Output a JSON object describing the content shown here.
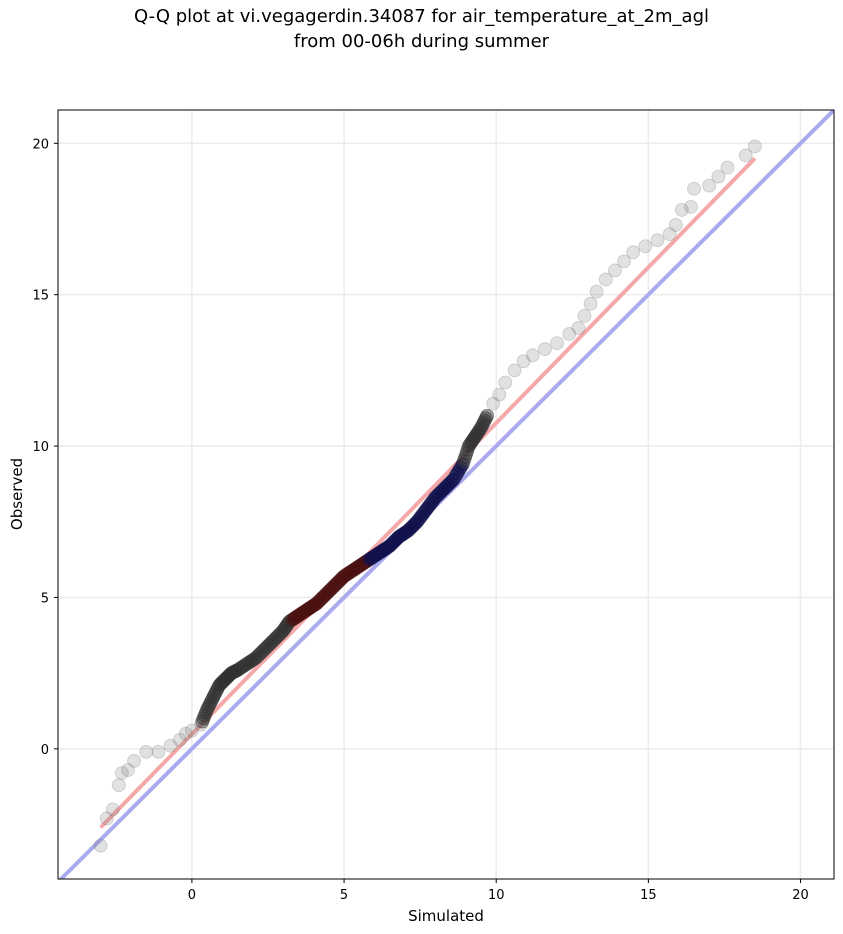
{
  "chart_data": {
    "type": "scatter",
    "title": "Q-Q plot at vi.vegagerdin.34087 for air_temperature_at_2m_agl",
    "subtitle": "from 00-06h during summer",
    "xlabel": "Simulated",
    "ylabel": "Observed",
    "xlim": [
      -4.4,
      21.1
    ],
    "ylim": [
      -4.3,
      21.1
    ],
    "xticks": [
      0,
      5,
      10,
      15,
      20
    ],
    "yticks": [
      0,
      5,
      10,
      15,
      20
    ],
    "grid": true,
    "reference_line": {
      "name": "1:1",
      "color": "#aaaaee",
      "from": [
        -4.4,
        -4.4
      ],
      "to": [
        21.1,
        21.1
      ]
    },
    "fit_line": {
      "color": "#f4a8a8",
      "from": [
        -3.0,
        -2.6
      ],
      "to": [
        18.5,
        19.5
      ]
    },
    "quantile_points": [
      [
        -3.0,
        -3.2
      ],
      [
        -2.8,
        -2.3
      ],
      [
        -2.6,
        -2.0
      ],
      [
        -2.4,
        -1.2
      ],
      [
        -2.3,
        -0.8
      ],
      [
        -2.1,
        -0.7
      ],
      [
        -1.9,
        -0.4
      ],
      [
        -1.5,
        -0.1
      ],
      [
        -1.1,
        -0.1
      ],
      [
        -0.7,
        0.1
      ],
      [
        -0.4,
        0.3
      ],
      [
        -0.2,
        0.5
      ],
      [
        0.0,
        0.6
      ],
      [
        0.3,
        0.8
      ],
      [
        0.5,
        1.3
      ],
      [
        0.7,
        1.7
      ],
      [
        0.9,
        2.1
      ],
      [
        1.1,
        2.3
      ],
      [
        1.3,
        2.5
      ],
      [
        1.5,
        2.6
      ],
      [
        1.8,
        2.8
      ],
      [
        2.1,
        3.0
      ],
      [
        2.4,
        3.3
      ],
      [
        2.7,
        3.6
      ],
      [
        3.0,
        3.9
      ],
      [
        3.2,
        4.2
      ],
      [
        3.5,
        4.4
      ],
      [
        3.8,
        4.6
      ],
      [
        4.1,
        4.8
      ],
      [
        4.4,
        5.1
      ],
      [
        4.7,
        5.4
      ],
      [
        5.0,
        5.7
      ],
      [
        5.3,
        5.9
      ],
      [
        5.6,
        6.1
      ],
      [
        5.9,
        6.3
      ],
      [
        6.2,
        6.5
      ],
      [
        6.5,
        6.7
      ],
      [
        6.8,
        7.0
      ],
      [
        7.1,
        7.2
      ],
      [
        7.4,
        7.5
      ],
      [
        7.7,
        7.9
      ],
      [
        8.0,
        8.3
      ],
      [
        8.3,
        8.6
      ],
      [
        8.6,
        8.9
      ],
      [
        8.9,
        9.4
      ],
      [
        9.1,
        10.0
      ],
      [
        9.3,
        10.3
      ],
      [
        9.5,
        10.6
      ],
      [
        9.7,
        11.0
      ],
      [
        9.9,
        11.4
      ],
      [
        10.1,
        11.7
      ],
      [
        10.3,
        12.1
      ],
      [
        10.6,
        12.5
      ],
      [
        10.9,
        12.8
      ],
      [
        11.2,
        13.0
      ],
      [
        11.6,
        13.2
      ],
      [
        12.0,
        13.4
      ],
      [
        12.4,
        13.7
      ],
      [
        12.7,
        13.9
      ],
      [
        12.9,
        14.3
      ],
      [
        13.1,
        14.7
      ],
      [
        13.3,
        15.1
      ],
      [
        13.6,
        15.5
      ],
      [
        13.9,
        15.8
      ],
      [
        14.2,
        16.1
      ],
      [
        14.5,
        16.4
      ],
      [
        14.9,
        16.6
      ],
      [
        15.3,
        16.8
      ],
      [
        15.7,
        17.0
      ],
      [
        15.9,
        17.3
      ],
      [
        16.1,
        17.8
      ],
      [
        16.4,
        17.9
      ],
      [
        16.5,
        18.5
      ],
      [
        17.0,
        18.6
      ],
      [
        17.3,
        18.9
      ],
      [
        17.6,
        19.2
      ],
      [
        18.2,
        19.6
      ],
      [
        18.5,
        19.9
      ]
    ],
    "highlight": {
      "red_segment_x": [
        3.3,
        5.8
      ],
      "blue_segment_x": [
        5.8,
        8.9
      ]
    }
  }
}
